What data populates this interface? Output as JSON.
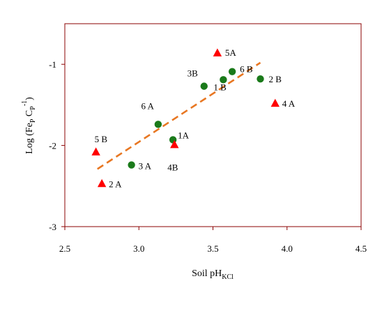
{
  "chart_data": {
    "type": "scatter",
    "xlabel": "Soil pH",
    "xlabel_sub": "KCl",
    "ylabel": "Log (Fe",
    "ylabel_sub1": "P",
    "ylabel_mid": " C",
    "ylabel_sub2": "P",
    "ylabel_sup": "-1",
    "ylabel_end": ")",
    "xlim": [
      2.5,
      4.5
    ],
    "ylim": [
      -3,
      -0.5
    ],
    "x_ticks": [
      {
        "value": 2.5,
        "label": "2.5"
      },
      {
        "value": 3.0,
        "label": "3.0"
      },
      {
        "value": 3.5,
        "label": "3.5"
      },
      {
        "value": 4.0,
        "label": "4.0"
      },
      {
        "value": 4.5,
        "label": "4.5"
      }
    ],
    "y_ticks": [
      {
        "value": -1,
        "label": "-1"
      },
      {
        "value": -2,
        "label": "-2"
      },
      {
        "value": -3,
        "label": "-3"
      }
    ],
    "grid": false,
    "colors": {
      "axis_frame": "#8b0000",
      "circle_series": "#1a7a1a",
      "triangle_series": "#ff0000",
      "trendline": "#e87722"
    },
    "series": [
      {
        "marker": "circle",
        "points": [
          {
            "x": 2.95,
            "y": -2.24,
            "label": "3 A"
          },
          {
            "x": 3.13,
            "y": -1.74,
            "label": "6 A"
          },
          {
            "x": 3.23,
            "y": -1.93,
            "label": "1A"
          },
          {
            "x": 3.44,
            "y": -1.27,
            "label": "3B"
          },
          {
            "x": 3.57,
            "y": -1.19,
            "label": "1 B"
          },
          {
            "x": 3.63,
            "y": -1.09,
            "label": "6 B"
          },
          {
            "x": 3.82,
            "y": -1.18,
            "label": "2 B"
          }
        ]
      },
      {
        "marker": "triangle",
        "points": [
          {
            "x": 2.71,
            "y": -2.08,
            "label": "5 B"
          },
          {
            "x": 2.75,
            "y": -2.47,
            "label": "2 A"
          },
          {
            "x": 3.24,
            "y": -1.99,
            "label": "4B"
          },
          {
            "x": 3.53,
            "y": -0.86,
            "label": "5A"
          },
          {
            "x": 3.92,
            "y": -1.48,
            "label": "4 A"
          }
        ]
      }
    ],
    "trendline": {
      "style": "dashed",
      "x": [
        2.72,
        3.82
      ],
      "y": [
        -2.29,
        -0.98
      ]
    }
  }
}
